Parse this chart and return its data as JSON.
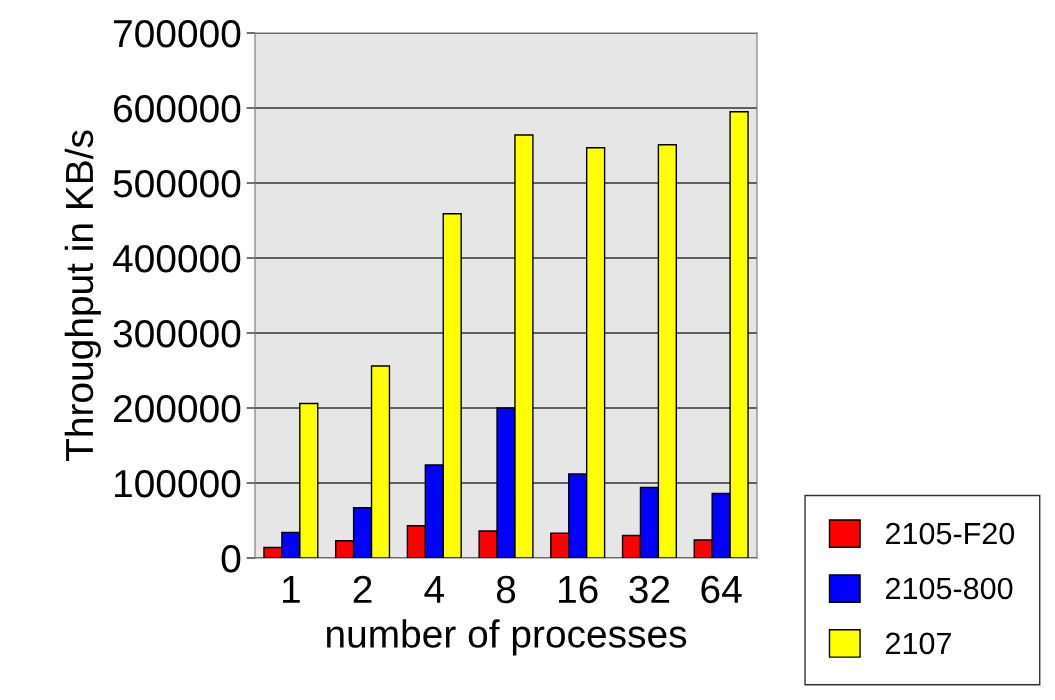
{
  "chart_data": {
    "type": "bar",
    "xlabel": "number of processes",
    "ylabel": "Throughput in KB/s",
    "categories": [
      "1",
      "2",
      "4",
      "8",
      "16",
      "32",
      "64"
    ],
    "series": [
      {
        "name": "2105-F20",
        "color": "#ff0000",
        "values": [
          14000,
          23000,
          43000,
          36000,
          33000,
          30000,
          24000
        ]
      },
      {
        "name": "2105-800",
        "color": "#0000ff",
        "values": [
          34000,
          67000,
          124000,
          200000,
          112000,
          94000,
          86000
        ]
      },
      {
        "name": "2107",
        "color": "#ffff00",
        "values": [
          206000,
          256000,
          459000,
          564000,
          547000,
          551000,
          595000
        ]
      }
    ],
    "ylim": [
      0,
      700000
    ],
    "yticks": [
      0,
      100000,
      200000,
      300000,
      400000,
      500000,
      600000,
      700000
    ],
    "grid": "y",
    "legend": "bottom right"
  }
}
